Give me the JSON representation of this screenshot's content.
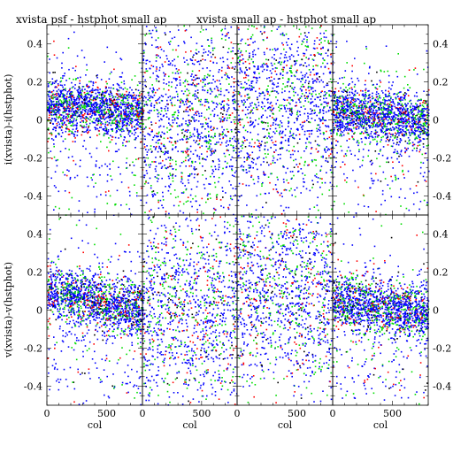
{
  "chart_data": {
    "type": "scatter",
    "layout_grid": "2 rows x 4 columns",
    "titles": [
      "xvista psf - hstphot small ap",
      "xvista small ap - hstphot small ap"
    ],
    "ylabels": [
      "i(xvista)-i(hstphot)",
      "v(xvista)-v(hstphot)"
    ],
    "xlabel": "col",
    "xlim": [
      0,
      800
    ],
    "ylim": [
      -0.5,
      0.5
    ],
    "x_ticks": [
      "0",
      "500"
    ],
    "left_y_ticks": [
      "0.4",
      "0.2",
      "0",
      "-0.2",
      "-0.4"
    ],
    "right_y_ticks": [
      "0.4",
      "0.2",
      "0",
      "-0.2",
      "-0.4"
    ],
    "grid": false,
    "series_colors": [
      "#0000ff",
      "#00dd00",
      "#ff0000",
      "#000000"
    ],
    "panels": [
      {
        "row": 0,
        "col": 0,
        "style": "concentrated",
        "center_offset": 0.08,
        "slope_per_500": -0.02
      },
      {
        "row": 0,
        "col": 1,
        "style": "diffuse"
      },
      {
        "row": 0,
        "col": 2,
        "style": "diffuse_high"
      },
      {
        "row": 0,
        "col": 3,
        "style": "concentrated",
        "center_offset": 0.05,
        "slope_per_500": -0.03
      },
      {
        "row": 1,
        "col": 0,
        "style": "concentrated",
        "center_offset": 0.1,
        "slope_per_500": -0.06
      },
      {
        "row": 1,
        "col": 1,
        "style": "diffuse"
      },
      {
        "row": 1,
        "col": 2,
        "style": "diffuse_high"
      },
      {
        "row": 1,
        "col": 3,
        "style": "concentrated",
        "center_offset": 0.05,
        "slope_per_500": -0.04
      }
    ]
  }
}
